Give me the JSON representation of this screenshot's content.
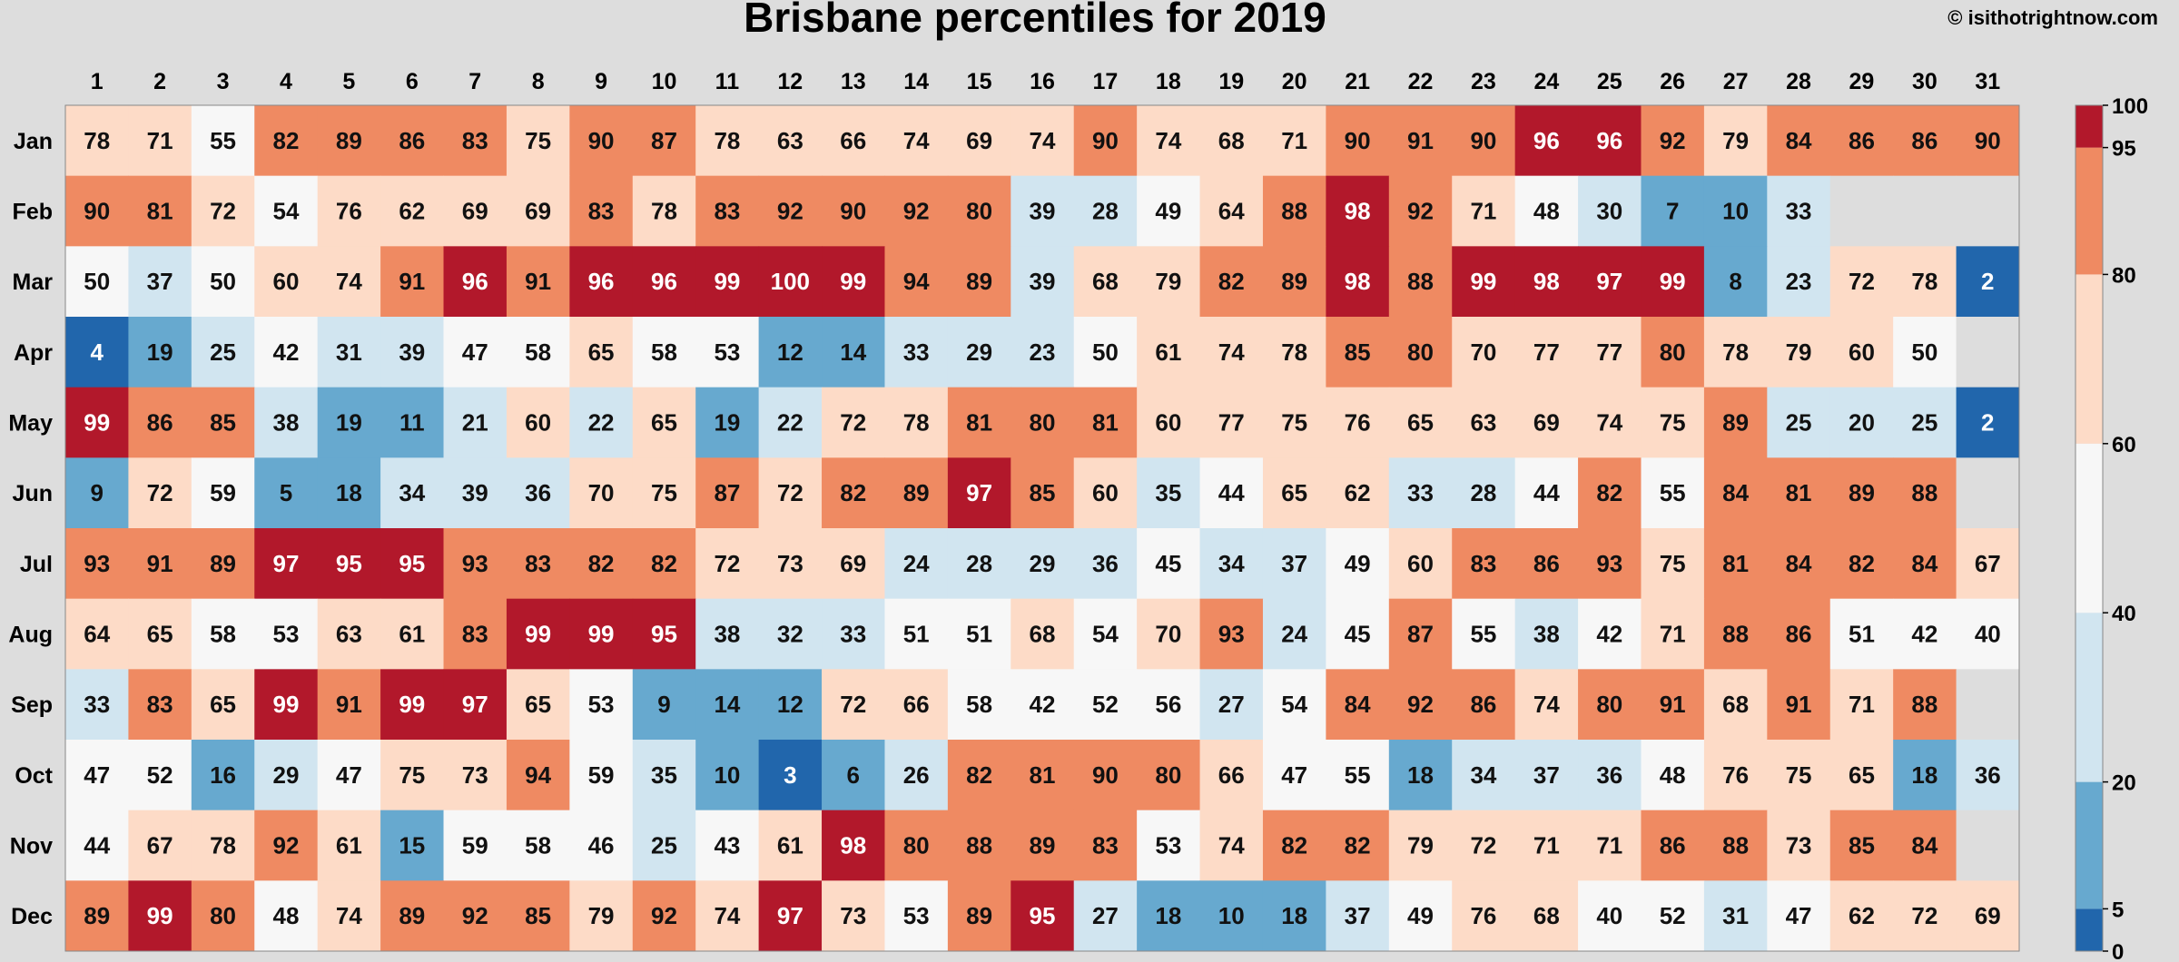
{
  "chart_data": {
    "type": "heatmap",
    "title": "Brisbane percentiles for 2019",
    "credit": "© isithotrightnow.com",
    "x_labels": [
      "1",
      "2",
      "3",
      "4",
      "5",
      "6",
      "7",
      "8",
      "9",
      "10",
      "11",
      "12",
      "13",
      "14",
      "15",
      "16",
      "17",
      "18",
      "19",
      "20",
      "21",
      "22",
      "23",
      "24",
      "25",
      "26",
      "27",
      "28",
      "29",
      "30",
      "31"
    ],
    "y_labels": [
      "Jan",
      "Feb",
      "Mar",
      "Apr",
      "May",
      "Jun",
      "Jul",
      "Aug",
      "Sep",
      "Oct",
      "Nov",
      "Dec"
    ],
    "values": [
      [
        78,
        71,
        55,
        82,
        89,
        86,
        83,
        75,
        90,
        87,
        78,
        63,
        66,
        74,
        69,
        74,
        90,
        74,
        68,
        71,
        90,
        91,
        90,
        96,
        96,
        92,
        79,
        84,
        86,
        86,
        90
      ],
      [
        90,
        81,
        72,
        54,
        76,
        62,
        69,
        69,
        83,
        78,
        83,
        92,
        90,
        92,
        80,
        39,
        28,
        49,
        64,
        88,
        98,
        92,
        71,
        48,
        30,
        7,
        10,
        33,
        null,
        null,
        null
      ],
      [
        50,
        37,
        50,
        60,
        74,
        91,
        96,
        91,
        96,
        96,
        99,
        100,
        99,
        94,
        89,
        39,
        68,
        79,
        82,
        89,
        98,
        88,
        99,
        98,
        97,
        99,
        8,
        23,
        72,
        78,
        2
      ],
      [
        4,
        19,
        25,
        42,
        31,
        39,
        47,
        58,
        65,
        58,
        53,
        12,
        14,
        33,
        29,
        23,
        50,
        61,
        74,
        78,
        85,
        80,
        70,
        77,
        77,
        80,
        78,
        79,
        60,
        50,
        null
      ],
      [
        99,
        86,
        85,
        38,
        19,
        11,
        21,
        60,
        22,
        65,
        19,
        22,
        72,
        78,
        81,
        80,
        81,
        60,
        77,
        75,
        76,
        65,
        63,
        69,
        74,
        75,
        89,
        25,
        20,
        25,
        2
      ],
      [
        9,
        72,
        59,
        5,
        18,
        34,
        39,
        36,
        70,
        75,
        87,
        72,
        82,
        89,
        97,
        85,
        60,
        35,
        44,
        65,
        62,
        33,
        28,
        44,
        82,
        55,
        84,
        81,
        89,
        88,
        null
      ],
      [
        93,
        91,
        89,
        97,
        95,
        95,
        93,
        83,
        82,
        82,
        72,
        73,
        69,
        24,
        28,
        29,
        36,
        45,
        34,
        37,
        49,
        60,
        83,
        86,
        93,
        75,
        81,
        84,
        82,
        84,
        67
      ],
      [
        64,
        65,
        58,
        53,
        63,
        61,
        83,
        99,
        99,
        95,
        38,
        32,
        33,
        51,
        51,
        68,
        54,
        70,
        93,
        24,
        45,
        87,
        55,
        38,
        42,
        71,
        88,
        86,
        51,
        42,
        40
      ],
      [
        33,
        83,
        65,
        99,
        91,
        99,
        97,
        65,
        53,
        9,
        14,
        12,
        72,
        66,
        58,
        42,
        52,
        56,
        27,
        54,
        84,
        92,
        86,
        74,
        80,
        91,
        68,
        91,
        71,
        88,
        null
      ],
      [
        47,
        52,
        16,
        29,
        47,
        75,
        73,
        94,
        59,
        35,
        10,
        3,
        6,
        26,
        82,
        81,
        90,
        80,
        66,
        47,
        55,
        18,
        34,
        37,
        36,
        48,
        76,
        75,
        65,
        18,
        36
      ],
      [
        44,
        67,
        78,
        92,
        61,
        15,
        59,
        58,
        46,
        25,
        43,
        61,
        98,
        80,
        88,
        89,
        83,
        53,
        74,
        82,
        82,
        79,
        72,
        71,
        71,
        86,
        88,
        73,
        85,
        84,
        null
      ],
      [
        89,
        99,
        80,
        48,
        74,
        89,
        92,
        85,
        79,
        92,
        74,
        97,
        73,
        53,
        89,
        95,
        27,
        18,
        10,
        18,
        37,
        49,
        76,
        68,
        40,
        52,
        31,
        47,
        62,
        72,
        69
      ]
    ],
    "color_scale": {
      "bins": [
        {
          "min": 0,
          "max": 5,
          "color": "#2166ac"
        },
        {
          "min": 5,
          "max": 20,
          "color": "#67a9cf"
        },
        {
          "min": 20,
          "max": 40,
          "color": "#d1e5f0"
        },
        {
          "min": 40,
          "max": 60,
          "color": "#f7f7f7"
        },
        {
          "min": 60,
          "max": 80,
          "color": "#fddbc7"
        },
        {
          "min": 80,
          "max": 95,
          "color": "#ef8a62"
        },
        {
          "min": 95,
          "max": 100,
          "color": "#b2182b"
        }
      ],
      "ticks": [
        "0",
        "5",
        "20",
        "40",
        "60",
        "80",
        "95",
        "100"
      ],
      "missing_color": "#dddddd"
    }
  }
}
